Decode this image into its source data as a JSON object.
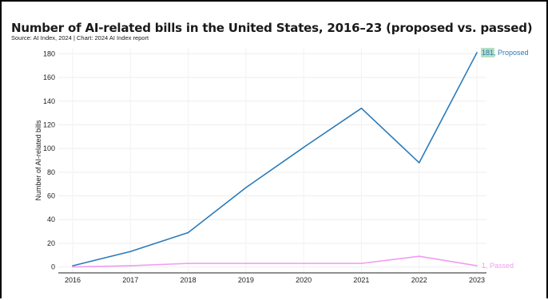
{
  "title": "Number of AI-related bills in the United States, 2016–23 (proposed vs. passed)",
  "source": "Source: AI Index, 2024 | Chart: 2024 AI Index report",
  "chart_data": {
    "type": "line",
    "title": "Number of AI-related bills in the United States, 2016–23 (proposed vs. passed)",
    "xlabel": "",
    "ylabel": "Number of AI-related bills",
    "x": [
      "2016",
      "2017",
      "2018",
      "2019",
      "2020",
      "2021",
      "2022",
      "2023"
    ],
    "ylim": [
      -5,
      185
    ],
    "yticks": [
      0,
      20,
      40,
      60,
      80,
      100,
      120,
      140,
      160,
      180
    ],
    "grid": true,
    "series": [
      {
        "name": "Proposed",
        "color": "#2b7bb9",
        "values": [
          1,
          13,
          29,
          67,
          101,
          134,
          88,
          181
        ],
        "end_value_label": "181",
        "end_label": "Proposed",
        "end_value_highlight": "#b5dfc3"
      },
      {
        "name": "Passed",
        "color": "#f09cf0",
        "values": [
          0,
          1,
          3,
          3,
          3,
          3,
          9,
          1
        ],
        "end_value_label": "1",
        "end_label": "Passed"
      }
    ]
  }
}
